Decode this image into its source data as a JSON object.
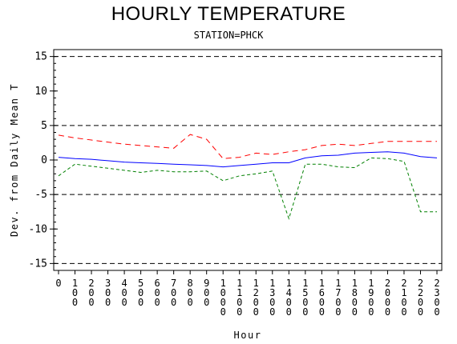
{
  "chart_data": {
    "type": "line",
    "title": "HOURLY TEMPERATURE",
    "subtitle": "STATION=PHCK",
    "xlabel": "Hour",
    "ylabel": "Dev. from Daily Mean T",
    "ylim": [
      -16,
      16
    ],
    "yticks": [
      -15,
      -10,
      -5,
      0,
      5,
      10,
      15
    ],
    "reference_lines": [
      -15,
      -5,
      5,
      15
    ],
    "x": [
      0,
      100,
      200,
      300,
      400,
      500,
      600,
      700,
      800,
      900,
      1000,
      1100,
      1200,
      1300,
      1400,
      1500,
      1600,
      1700,
      1800,
      1900,
      2000,
      2100,
      2200,
      2300
    ],
    "xtick_labels": [
      "0",
      "100",
      "200",
      "300",
      "400",
      "500",
      "600",
      "700",
      "800",
      "900",
      "1000",
      "1100",
      "1200",
      "1300",
      "1400",
      "1500",
      "1600",
      "1700",
      "1800",
      "1900",
      "2000",
      "2100",
      "2200",
      "2300"
    ],
    "series": [
      {
        "values": [
          3.6,
          3.2,
          2.9,
          2.6,
          2.3,
          2.1,
          1.9,
          1.7,
          3.7,
          3.0,
          0.2,
          0.4,
          1.0,
          0.8,
          1.2,
          1.5,
          2.1,
          2.3,
          2.1,
          2.4,
          2.7,
          2.7,
          2.7,
          2.7
        ],
        "color": "#ff0000",
        "dash": "long"
      },
      {
        "values": [
          0.4,
          0.2,
          0.1,
          -0.1,
          -0.3,
          -0.4,
          -0.5,
          -0.6,
          -0.7,
          -0.8,
          -1.0,
          -0.8,
          -0.6,
          -0.4,
          -0.4,
          0.3,
          0.6,
          0.7,
          1.0,
          1.1,
          1.2,
          1.0,
          0.5,
          0.3
        ],
        "color": "#0000ff",
        "dash": "solid"
      },
      {
        "values": [
          -2.3,
          -0.6,
          -0.9,
          -1.2,
          -1.5,
          -1.8,
          -1.5,
          -1.7,
          -1.7,
          -1.6,
          -3.0,
          -2.3,
          -2.0,
          -1.6,
          -8.5,
          -0.6,
          -0.6,
          -1.0,
          -1.1,
          0.3,
          0.2,
          -0.2,
          -7.5,
          -7.5
        ],
        "color": "#008000",
        "dash": "short"
      }
    ],
    "grid": false,
    "legend": "none"
  }
}
